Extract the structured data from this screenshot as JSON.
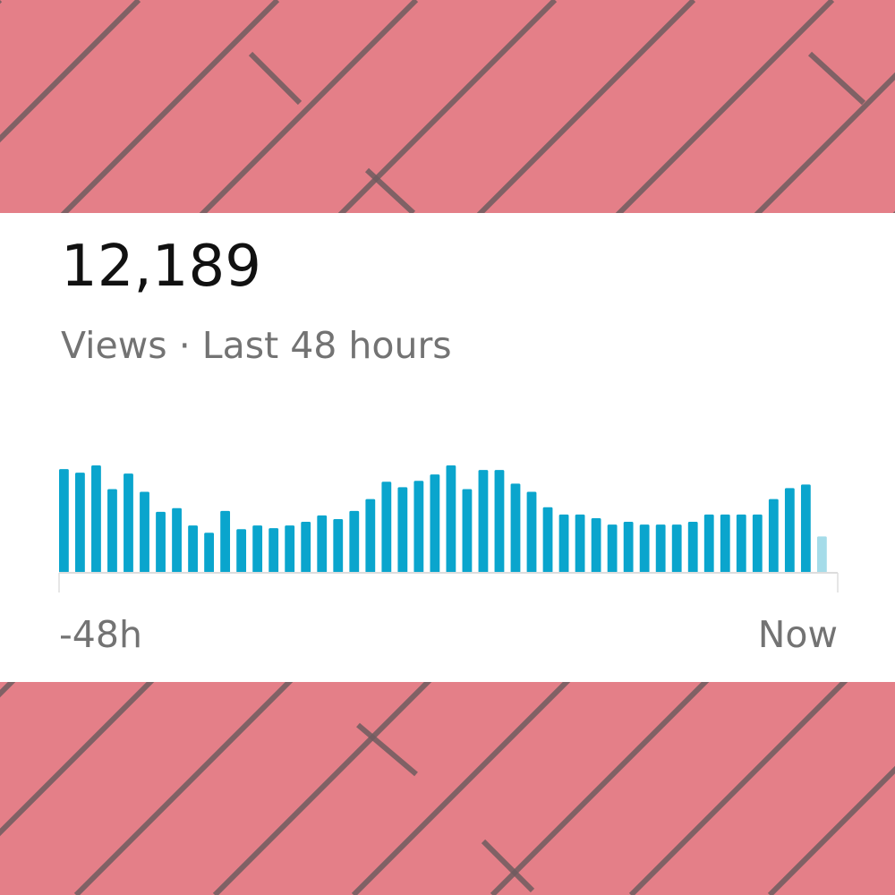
{
  "stat": {
    "value": "12,189",
    "label": "Views · Last 48 hours"
  },
  "colors": {
    "background": "#e47f88",
    "plank_line": "#6e5c5f",
    "card": "#ffffff",
    "bar": "#0aa5cd",
    "bar_current": "#a5dce9",
    "axis": "#dddddd",
    "text_primary": "#111111",
    "text_secondary": "#737373"
  },
  "chart_data": {
    "type": "bar",
    "x_start_label": "-48h",
    "x_end_label": "Now",
    "current_hour_highlighted": true,
    "values": [
      114,
      110,
      118,
      92,
      109,
      89,
      67,
      71,
      52,
      44,
      68,
      48,
      52,
      49,
      52,
      56,
      63,
      59,
      68,
      81,
      100,
      94,
      101,
      108,
      118,
      92,
      113,
      113,
      98,
      89,
      72,
      64,
      64,
      60,
      53,
      56,
      53,
      53,
      53,
      56,
      64,
      64,
      64,
      64,
      81,
      93,
      97,
      40
    ]
  }
}
